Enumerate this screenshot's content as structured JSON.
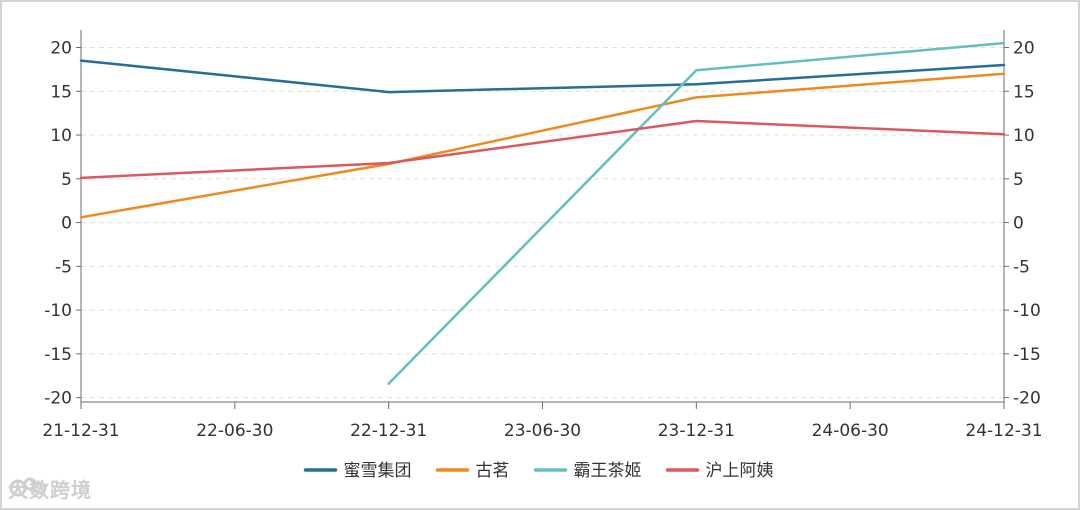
{
  "chart_data": {
    "type": "line",
    "x": [
      "21-12-31",
      "22-12-31",
      "23-12-31",
      "24-12-31"
    ],
    "x_tick_labels": [
      "21-12-31",
      "22-06-30",
      "22-12-31",
      "23-06-30",
      "23-12-31",
      "24-06-30",
      "24-12-31"
    ],
    "y_ticks": [
      20,
      15,
      10,
      5,
      0,
      -5,
      -10,
      -15,
      -20
    ],
    "ylim": [
      -20.5,
      22
    ],
    "grid": true,
    "legend_position": "bottom",
    "series": [
      {
        "name": "蜜雪集团",
        "color": "#276e96",
        "values": [
          18.5,
          14.9,
          15.8,
          18.0
        ]
      },
      {
        "name": "古茗",
        "color": "#ef8a1e",
        "values": [
          0.6,
          6.7,
          14.3,
          17.0
        ]
      },
      {
        "name": "霸王茶姬",
        "color": "#63c0c0",
        "values": [
          null,
          -18.4,
          17.4,
          20.5
        ]
      },
      {
        "name": "沪上阿姨",
        "color": "#d9595f",
        "values": [
          5.1,
          6.8,
          11.6,
          10.1
        ]
      }
    ]
  },
  "watermark": {
    "text": "大数跨境"
  }
}
